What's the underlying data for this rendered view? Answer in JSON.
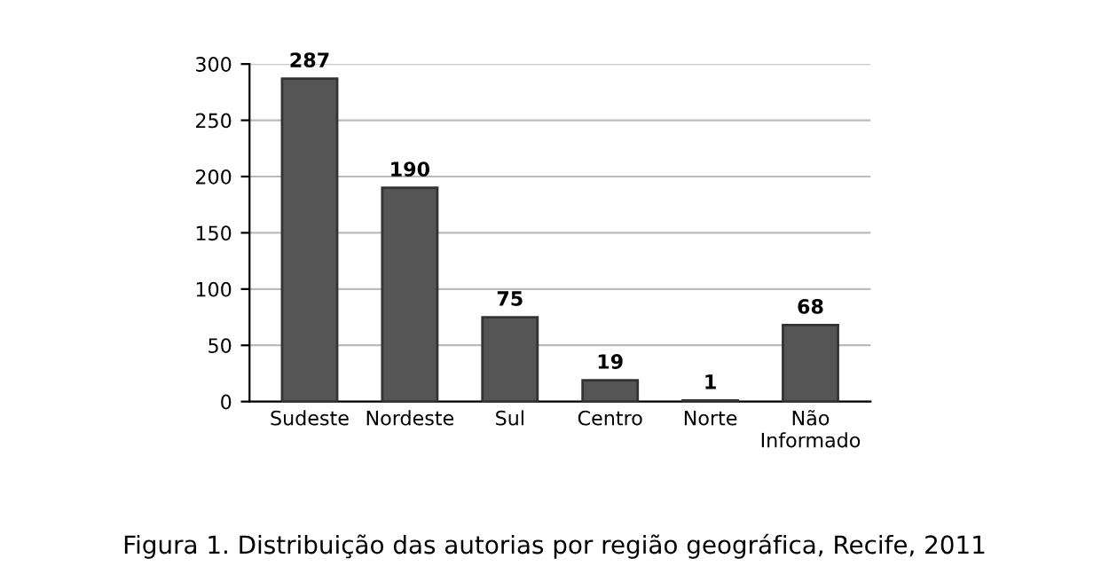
{
  "chart_data": {
    "type": "bar",
    "categories": [
      "Sudeste",
      "Nordeste",
      "Sul",
      "Centro",
      "Norte",
      "Não\nInformado"
    ],
    "values": [
      287,
      190,
      75,
      19,
      1,
      68
    ],
    "color": "#555555",
    "ylim": [
      0,
      300
    ],
    "yticks": [
      0,
      50,
      100,
      150,
      200,
      250,
      300
    ],
    "grid": "y",
    "data_labels": true,
    "annotations": [
      "Figura 1. Distribuição das autorias por região geográfica, Recife, 2011"
    ]
  }
}
